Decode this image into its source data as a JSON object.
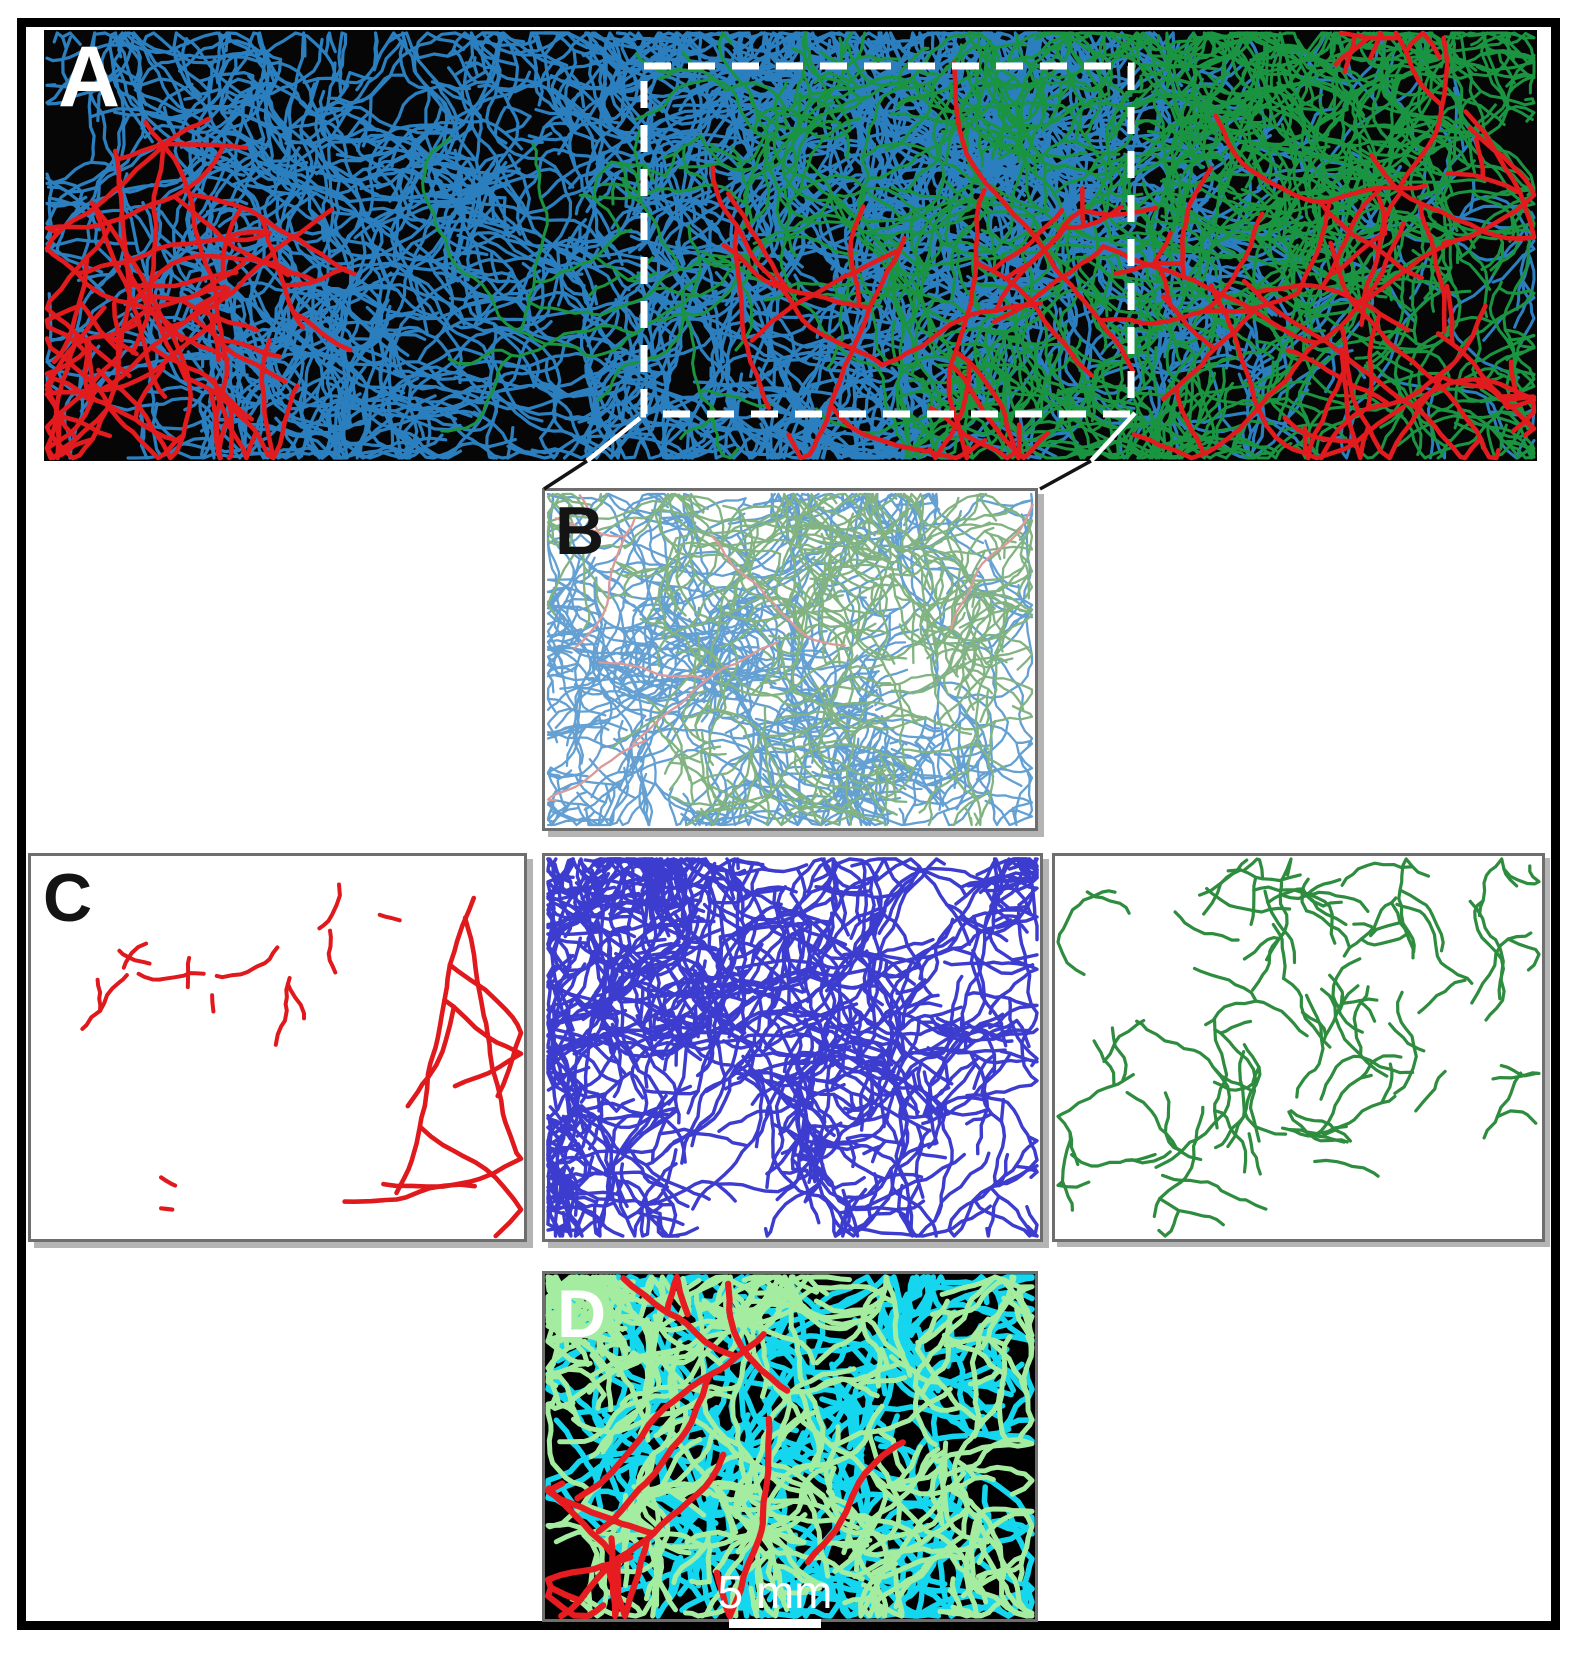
{
  "figure": {
    "type": "multi-panel vascular network tracing figure",
    "panel_a": {
      "label": "A",
      "background": "#060606"
    },
    "panel_b": {
      "label": "B",
      "background": "#ffffff"
    },
    "panel_c": {
      "label": "C",
      "background": "#ffffff"
    },
    "panel_d": {
      "label": "D",
      "background": "#010101",
      "scale_bar": {
        "text": "5 mm",
        "color": "#ffffff"
      }
    }
  },
  "colors": {
    "page_bg": "#ffffff",
    "outer_frame": "#000000",
    "panel_border": "#6e6e6e",
    "panel_shadow": "#b4b4b4",
    "dashed_box": "#ffffff",
    "connector_light": "#ffffff",
    "connector_dark": "#141414",
    "trace_blue": "#2B7FBE",
    "trace_green": "#1A9440",
    "trace_red": "#E11B1E",
    "trace_blue_pale": "#64A0D2",
    "trace_green_pale": "#82B382",
    "trace_red_pale": "#DA9A9A",
    "trace_indigo": "#3C3CCE",
    "trace_forest": "#2E8C3E",
    "trace_cyan": "#14D7EF",
    "trace_lightgreen": "#A4EDA0"
  },
  "panels": {
    "a": {
      "series": [
        {
          "name": "blue-network-dense",
          "color": "#2B7FBE",
          "count": 58,
          "width": 3.2,
          "step": 11,
          "steps": [
            24,
            46
          ],
          "wiggle": 1.05,
          "branch": 0.16,
          "region": [
            0.0,
            0.02,
            0.74,
            0.98
          ],
          "seed": 11
        },
        {
          "name": "blue-network-sparse",
          "color": "#2B7FBE",
          "count": 10,
          "width": 3,
          "step": 11,
          "steps": [
            16,
            30
          ],
          "wiggle": 1.0,
          "branch": 0.1,
          "region": [
            0.62,
            0.05,
            1.0,
            0.95
          ],
          "seed": 12
        },
        {
          "name": "green-network",
          "color": "#1A9440",
          "count": 46,
          "width": 3,
          "step": 10,
          "steps": [
            18,
            38
          ],
          "wiggle": 1.05,
          "branch": 0.14,
          "region": [
            0.42,
            0.03,
            1.0,
            0.92
          ],
          "seed": 13
        },
        {
          "name": "red-vessels",
          "color": "#E11B1E",
          "count": 16,
          "width": 4.6,
          "step": 13,
          "steps": [
            16,
            32
          ],
          "wiggle": 0.5,
          "branch": 0.09,
          "region": [
            0.0,
            0.0,
            1.0,
            0.75
          ],
          "dir": 95,
          "spread": 55,
          "seed": 14
        }
      ]
    },
    "b": {
      "series": [
        {
          "name": "pale-blue-network",
          "color": "#64A0D2",
          "count": 28,
          "width": 2.3,
          "step": 9,
          "steps": [
            18,
            34
          ],
          "wiggle": 1.0,
          "branch": 0.15,
          "region": [
            0.0,
            0.02,
            0.78,
            0.98
          ],
          "seed": 21
        },
        {
          "name": "pale-green-network",
          "color": "#82B382",
          "count": 22,
          "width": 2.3,
          "step": 9,
          "steps": [
            16,
            30
          ],
          "wiggle": 1.0,
          "branch": 0.13,
          "region": [
            0.22,
            0.05,
            1.0,
            0.88
          ],
          "seed": 22
        },
        {
          "name": "pale-red-vessels",
          "color": "#DA9A9A",
          "count": 5,
          "width": 2.3,
          "step": 10,
          "steps": [
            10,
            22
          ],
          "wiggle": 0.5,
          "branch": 0.05,
          "region": [
            0.1,
            0.02,
            1.0,
            0.9
          ],
          "dir": 100,
          "spread": 60,
          "seed": 23
        }
      ]
    },
    "c_red": {
      "series": [
        {
          "name": "red-fragments",
          "color": "#E0191D",
          "count": 11,
          "width": 4,
          "step": 8,
          "steps": [
            2,
            9
          ],
          "wiggle": 0.9,
          "branch": 0.05,
          "region": [
            0.03,
            0.08,
            0.72,
            0.52
          ],
          "seed": 41
        },
        {
          "name": "red-long-vessel",
          "color": "#E0191D",
          "count": 2,
          "width": 4.6,
          "step": 13,
          "steps": [
            16,
            26
          ],
          "wiggle": 0.35,
          "branch": 0.03,
          "region": [
            0.82,
            0.02,
            0.95,
            0.22
          ],
          "dir": 100,
          "spread": 25,
          "seed": 42
        },
        {
          "name": "red-bottom-vessel",
          "color": "#E0191D",
          "count": 1,
          "width": 4.6,
          "step": 12,
          "steps": [
            10,
            16
          ],
          "wiggle": 0.4,
          "branch": 0.0,
          "region": [
            0.72,
            0.84,
            0.9,
            0.92
          ],
          "dir": 195,
          "spread": 20,
          "seed": 43
        },
        {
          "name": "red-dots",
          "color": "#E0191D",
          "count": 2,
          "width": 4.2,
          "step": 6,
          "steps": [
            1,
            3
          ],
          "wiggle": 0.5,
          "branch": 0.0,
          "region": [
            0.08,
            0.82,
            0.3,
            0.94
          ],
          "seed": 44
        }
      ]
    },
    "c_blue": {
      "series": [
        {
          "name": "indigo-network-left",
          "color": "#3C3CCE",
          "count": 30,
          "width": 3.4,
          "step": 10,
          "steps": [
            14,
            30
          ],
          "wiggle": 1.05,
          "branch": 0.15,
          "region": [
            0.0,
            0.02,
            0.46,
            0.95
          ],
          "seed": 51
        },
        {
          "name": "indigo-network-right",
          "color": "#3C3CCE",
          "count": 26,
          "width": 3.4,
          "step": 10,
          "steps": [
            12,
            28
          ],
          "wiggle": 1.0,
          "branch": 0.13,
          "region": [
            0.4,
            0.02,
            1.0,
            0.75
          ],
          "seed": 52
        }
      ]
    },
    "c_green": {
      "series": [
        {
          "name": "green-fragments",
          "color": "#2E8C3E",
          "count": 50,
          "width": 3.2,
          "step": 9,
          "steps": [
            5,
            15
          ],
          "wiggle": 1.0,
          "branch": 0.07,
          "region": [
            0.02,
            0.04,
            0.98,
            0.88
          ],
          "seed": 61
        }
      ]
    },
    "d": {
      "series": [
        {
          "name": "cyan-network",
          "color": "#14D7EF",
          "count": 24,
          "width": 5.5,
          "step": 11,
          "steps": [
            16,
            30
          ],
          "wiggle": 0.9,
          "branch": 0.15,
          "region": [
            0.0,
            0.12,
            1.0,
            0.98
          ],
          "seed": 71
        },
        {
          "name": "lightgreen-network",
          "color": "#A4EDA0",
          "count": 24,
          "width": 5,
          "step": 10,
          "steps": [
            12,
            26
          ],
          "wiggle": 0.95,
          "branch": 0.14,
          "region": [
            0.02,
            0.02,
            1.0,
            0.68
          ],
          "seed": 72
        },
        {
          "name": "red-vessels",
          "color": "#E61C20",
          "count": 6,
          "width": 6.2,
          "step": 12,
          "steps": [
            10,
            22
          ],
          "wiggle": 0.4,
          "branch": 0.04,
          "region": [
            0.08,
            0.0,
            0.95,
            0.55
          ],
          "dir": 100,
          "spread": 45,
          "seed": 73
        }
      ]
    }
  },
  "inset": {
    "dash_length": 27,
    "gap_length": 17,
    "stroke_width": 7
  }
}
